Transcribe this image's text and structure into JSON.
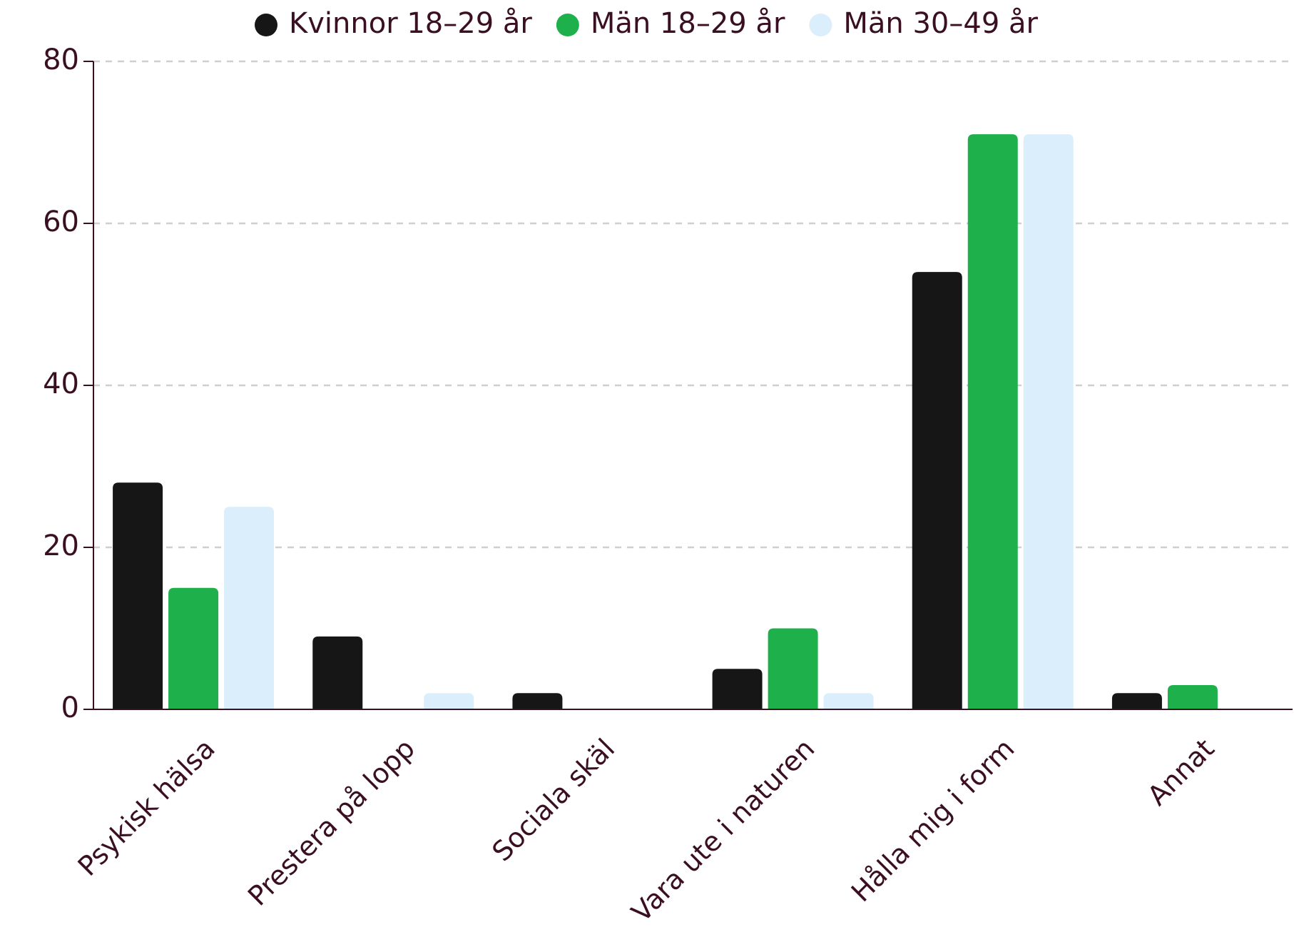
{
  "chart_data": {
    "type": "bar",
    "categories": [
      "Psykisk hälsa",
      "Prestera på lopp",
      "Sociala skäl",
      "Vara ute i naturen",
      "Hålla mig i form",
      "Annat"
    ],
    "series": [
      {
        "name": "Kvinnor 18–29 år",
        "color": "#161616",
        "values": [
          28,
          9,
          2,
          5,
          54,
          2
        ]
      },
      {
        "name": "Män 18–29 år",
        "color": "#1db04b",
        "values": [
          15,
          0,
          0,
          10,
          71,
          3
        ]
      },
      {
        "name": "Män 30–49 år",
        "color": "#dbeefb",
        "values": [
          25,
          2,
          0,
          2,
          71,
          0
        ]
      }
    ],
    "ylim": [
      0,
      80
    ],
    "yticks": [
      0,
      20,
      40,
      60,
      80
    ],
    "grid": true,
    "legend": "top"
  }
}
